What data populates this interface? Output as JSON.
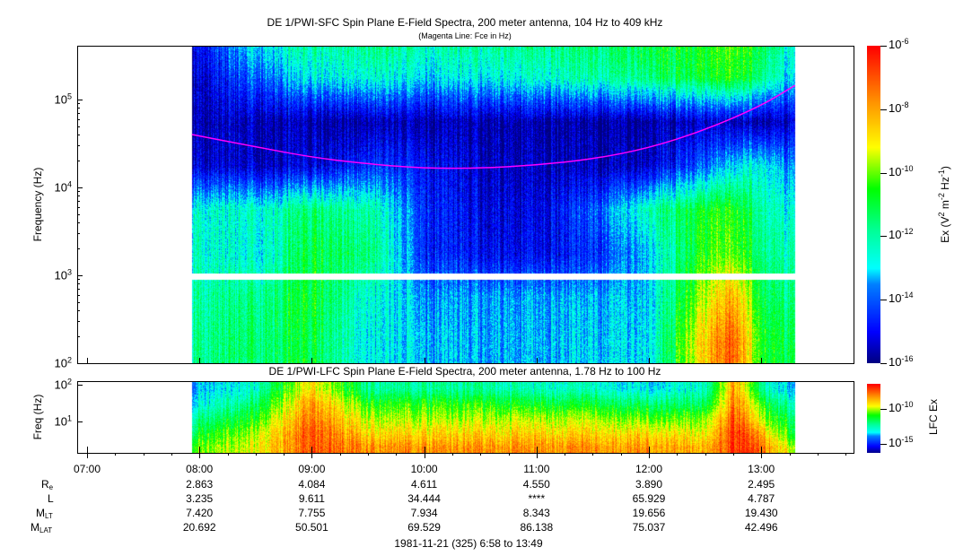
{
  "chart_data": [
    {
      "type": "heatmap",
      "title": "DE 1/PWI-SFC  Spin Plane E-Field Spectra, 200 meter antenna, 104 Hz to 409 kHz",
      "subtitle": "(Magenta Line: Fce in Hz)",
      "ylabel": "Frequency (Hz)",
      "yscale": "log",
      "ylim": [
        100,
        436000
      ],
      "y_ticks": [
        "10^2",
        "10^3",
        "10^4",
        "10^5"
      ],
      "xlim": [
        "06:55",
        "13:55"
      ],
      "colorbar": {
        "label": "Ex (V^2 m^-2 Hz^-1)",
        "scale": "log",
        "range": [
          -16,
          -6
        ],
        "ticks": [
          "10^-6",
          "10^-8",
          "10^-10",
          "10^-12",
          "10^-14",
          "10^-16"
        ],
        "colors": [
          "#00007f",
          "#0000ff",
          "#0080ff",
          "#00ffff",
          "#00ff80",
          "#00ff00",
          "#ffff00",
          "#ff9900",
          "#ff0000"
        ]
      },
      "gap_hz": [
        900,
        1050
      ],
      "times": [
        "07:56",
        "08:30",
        "09:00",
        "09:30",
        "10:00",
        "10:30",
        "11:00",
        "11:30",
        "12:00",
        "12:30",
        "12:45",
        "13:00",
        "13:18"
      ],
      "log10_freq_bands": [
        2.25,
        2.75,
        3.25,
        3.75,
        4.25,
        4.75,
        5.25,
        5.6
      ],
      "log10_intensity": [
        [
          -11.8,
          -11.5,
          -11.0,
          -12.8,
          -13.2,
          -13.4,
          -13.3,
          -13.0,
          -12.8,
          -8.5,
          -7.0,
          -10.5,
          -11.5
        ],
        [
          -12.0,
          -11.8,
          -10.8,
          -12.5,
          -13.5,
          -13.5,
          -13.4,
          -13.2,
          -13.0,
          -9.5,
          -8.0,
          -11.0,
          -12.0
        ],
        [
          -12.3,
          -12.8,
          -11.0,
          -11.5,
          -14.5,
          -15.0,
          -15.0,
          -14.5,
          -13.0,
          -10.5,
          -10.0,
          -11.5,
          -12.5
        ],
        [
          -12.5,
          -12.5,
          -11.5,
          -12.0,
          -14.5,
          -15.2,
          -15.2,
          -14.0,
          -12.0,
          -10.8,
          -10.5,
          -11.8,
          -13.0
        ],
        [
          -15.3,
          -15.5,
          -15.2,
          -14.5,
          -14.8,
          -15.5,
          -15.5,
          -15.5,
          -15.3,
          -14.0,
          -13.0,
          -12.5,
          -14.0
        ],
        [
          -15.6,
          -15.6,
          -15.7,
          -15.7,
          -15.7,
          -15.7,
          -15.7,
          -15.7,
          -15.7,
          -15.5,
          -15.5,
          -15.6,
          -15.6
        ],
        [
          -15.5,
          -14.0,
          -12.8,
          -12.5,
          -13.0,
          -12.8,
          -12.5,
          -12.0,
          -11.5,
          -11.0,
          -10.5,
          -11.5,
          -13.5
        ],
        [
          -15.2,
          -13.0,
          -12.0,
          -11.8,
          -12.2,
          -12.0,
          -11.8,
          -11.5,
          -11.0,
          -10.8,
          -10.2,
          -11.0,
          -13.0
        ]
      ],
      "fce_line": {
        "color": "#ff00ff",
        "times": [
          "07:56",
          "08:30",
          "09:00",
          "09:30",
          "10:00",
          "10:30",
          "11:00",
          "11:30",
          "12:00",
          "12:30",
          "13:00",
          "13:18"
        ],
        "values_hz": [
          40000,
          29000,
          22000,
          18500,
          16500,
          16500,
          18000,
          21000,
          28000,
          45000,
          85000,
          145000
        ]
      }
    },
    {
      "type": "heatmap",
      "title": "DE 1/PWI-LFC  Spin Plane E-Field Spectra, 200 meter antenna, 1.78 Hz to 100 Hz",
      "ylabel": "Freq (Hz)",
      "yscale": "log",
      "ylim": [
        1.4,
        120
      ],
      "y_ticks": [
        "10^1",
        "10^2"
      ],
      "colorbar": {
        "label": "LFC Ex",
        "scale": "log",
        "range": [
          -17,
          -6
        ],
        "ticks": [
          "10^-10",
          "10^-15"
        ]
      },
      "times": [
        "07:56",
        "08:30",
        "09:00",
        "09:30",
        "10:00",
        "10:30",
        "11:00",
        "11:30",
        "12:00",
        "12:30",
        "12:45",
        "13:00",
        "13:18"
      ],
      "log10_freq_bands": [
        0.3,
        0.7,
        1.1,
        1.5,
        1.9
      ],
      "log10_intensity": [
        [
          -10.5,
          -9.5,
          -7.0,
          -8.0,
          -8.0,
          -8.0,
          -8.0,
          -8.0,
          -8.0,
          -8.5,
          -6.5,
          -7.5,
          -10.0
        ],
        [
          -11.5,
          -10.0,
          -7.0,
          -9.0,
          -9.0,
          -9.0,
          -9.0,
          -9.0,
          -9.0,
          -9.5,
          -6.5,
          -8.5,
          -11.5
        ],
        [
          -12.5,
          -11.0,
          -7.5,
          -10.0,
          -10.0,
          -10.0,
          -10.0,
          -10.0,
          -10.5,
          -10.5,
          -7.0,
          -10.0,
          -12.0
        ],
        [
          -13.5,
          -12.0,
          -8.0,
          -11.0,
          -11.0,
          -11.0,
          -11.5,
          -11.5,
          -12.0,
          -12.0,
          -7.5,
          -11.0,
          -13.0
        ],
        [
          -14.0,
          -13.0,
          -9.0,
          -12.5,
          -12.5,
          -12.5,
          -13.0,
          -13.0,
          -13.5,
          -13.0,
          -8.0,
          -12.5,
          -14.0
        ]
      ]
    }
  ],
  "x_axis": {
    "tick_labels": [
      "07:00",
      "08:00",
      "09:00",
      "10:00",
      "11:00",
      "12:00",
      "13:00"
    ]
  },
  "ephemeris": {
    "rows": [
      {
        "label": "R",
        "sub": "e",
        "values": [
          "2.863",
          "4.084",
          "4.611",
          "4.550",
          "3.890",
          "2.495"
        ]
      },
      {
        "label": "L",
        "sub": "",
        "values": [
          "3.235",
          "9.611",
          "34.444",
          "****",
          "65.929",
          "4.787"
        ]
      },
      {
        "label": "M",
        "sub": "LT",
        "values": [
          "7.420",
          "7.755",
          "7.934",
          "8.343",
          "19.656",
          "19.430"
        ]
      },
      {
        "label": "M",
        "sub": "LAT",
        "values": [
          "20.692",
          "50.501",
          "69.529",
          "86.138",
          "75.037",
          "42.496"
        ]
      }
    ],
    "date_range": "1981-11-21 (325) 6:58 to 13:49"
  }
}
